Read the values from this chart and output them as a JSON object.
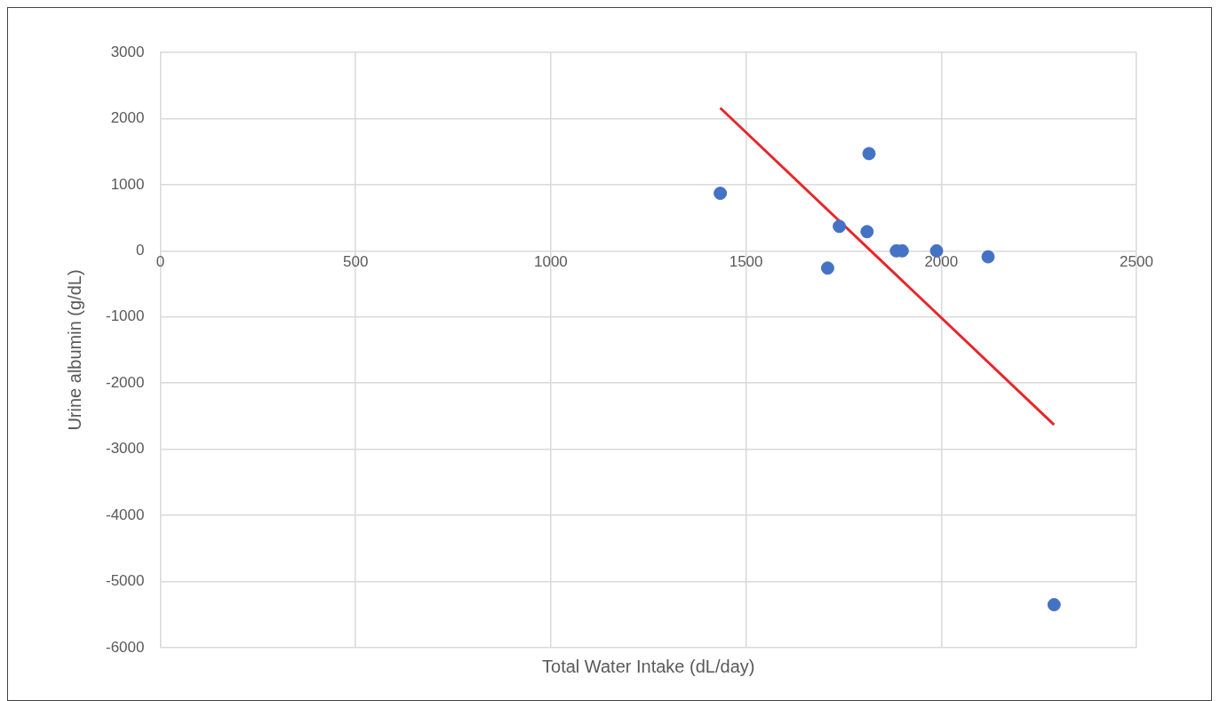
{
  "chart_data": {
    "type": "scatter",
    "xlabel": "Total Water Intake (dL/day)",
    "ylabel": "Urine albumin (g/dL)",
    "xlim": [
      0,
      2500
    ],
    "xticks": [
      0,
      500,
      1000,
      1500,
      2000,
      2500
    ],
    "ylim": [
      -6000,
      3000
    ],
    "yticks": [
      -6000,
      -5000,
      -4000,
      -3000,
      -2000,
      -1000,
      0,
      1000,
      2000,
      3000
    ],
    "grid": true,
    "legend": false,
    "marker": "circle",
    "series": [
      {
        "color": "#4472c4",
        "x": [
          1434,
          1709,
          1739,
          1810,
          1815,
          1885,
          1900,
          1988,
          2120,
          2289
        ],
        "values": [
          870,
          -260,
          370,
          290,
          1470,
          0,
          0,
          0,
          -90,
          -5350
        ]
      },
      {
        "type": "line",
        "color": "#e8262a",
        "marker": "none",
        "line_style": "solid",
        "x": [
          1434,
          2289
        ],
        "values": [
          2160,
          -2630
        ]
      }
    ]
  }
}
